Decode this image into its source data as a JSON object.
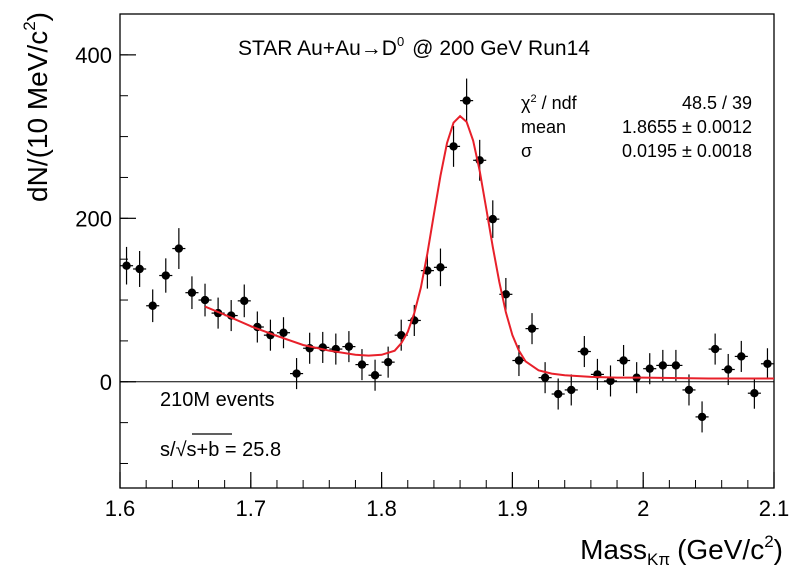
{
  "chart_data": {
    "type": "scatter",
    "title": {
      "text": "STAR Au+Au",
      "arrow": "→",
      "particle": "D",
      "particle_sup": "0",
      "rest": "@ 200 GeV Run14"
    },
    "xlabel": {
      "main": "Mass",
      "sub": "Kπ",
      "unit_pre": "(GeV/c",
      "unit_sup": "2",
      "unit_post": ")"
    },
    "ylabel": {
      "main": "dN/(10 MeV/c",
      "sup": "2",
      "post": ")"
    },
    "xlim": [
      1.6,
      2.1
    ],
    "ylim": [
      -130,
      450
    ],
    "x_ticks": [
      {
        "value": 1.6,
        "label": "1.6"
      },
      {
        "value": 1.7,
        "label": "1.7"
      },
      {
        "value": 1.8,
        "label": "1.8"
      },
      {
        "value": 1.9,
        "label": "1.9"
      },
      {
        "value": 2.0,
        "label": "2"
      },
      {
        "value": 2.1,
        "label": "2.1"
      }
    ],
    "y_ticks": [
      {
        "value": 0,
        "label": "0"
      },
      {
        "value": 200,
        "label": "200"
      },
      {
        "value": 400,
        "label": "400"
      }
    ],
    "x_minor_step": 0.02,
    "y_minor_step": 50,
    "zero_line": true,
    "grid": false,
    "stats": {
      "rows": [
        {
          "label_main": "χ",
          "label_sup": "2",
          "label_post": " / ndf",
          "value": "48.5 / 39"
        },
        {
          "label_main": "mean",
          "label_sup": "",
          "label_post": "",
          "value": "1.8655 ± 0.0012"
        },
        {
          "label_main": "σ",
          "label_sup": "",
          "label_post": "",
          "value": "0.0195 ± 0.0018"
        }
      ]
    },
    "annotations": {
      "events": "210M events",
      "significance_pre": "s/",
      "significance_sqrt": "s+b",
      "significance_post": " = 25.8"
    },
    "series": [
      {
        "kind": "data-points",
        "x": [
          1.605,
          1.615,
          1.625,
          1.635,
          1.645,
          1.655,
          1.665,
          1.675,
          1.685,
          1.695,
          1.705,
          1.715,
          1.725,
          1.735,
          1.745,
          1.755,
          1.765,
          1.775,
          1.785,
          1.795,
          1.805,
          1.815,
          1.825,
          1.835,
          1.845,
          1.855,
          1.865,
          1.875,
          1.885,
          1.895,
          1.905,
          1.915,
          1.925,
          1.935,
          1.945,
          1.955,
          1.965,
          1.975,
          1.985,
          1.995,
          2.005,
          2.015,
          2.025,
          2.035,
          2.045,
          2.055,
          2.065,
          2.075,
          2.085,
          2.095
        ],
        "y": [
          142,
          138,
          93,
          130,
          163,
          109,
          100,
          84,
          81,
          99,
          67,
          57,
          60,
          10,
          41,
          42,
          40,
          43,
          21,
          8,
          24,
          57,
          75,
          136,
          140,
          288,
          344,
          271,
          199,
          107,
          26,
          65,
          5,
          -15,
          -10,
          37,
          9,
          1,
          26,
          5,
          16,
          20,
          20,
          -10,
          -43,
          40,
          15,
          31,
          -14,
          22
        ],
        "err": [
          23,
          22,
          20,
          21,
          25,
          20,
          20,
          19,
          19,
          20,
          19,
          19,
          19,
          19,
          19,
          19,
          19,
          19,
          19,
          19,
          19,
          19,
          19,
          22,
          23,
          25,
          27,
          25,
          23,
          20,
          19,
          19,
          19,
          19,
          19,
          19,
          19,
          19,
          19,
          19,
          19,
          19,
          19,
          19,
          19,
          19,
          19,
          19,
          19,
          19
        ]
      },
      {
        "kind": "fit-curve",
        "color": "#e8202a",
        "x": [
          1.665,
          1.68,
          1.7,
          1.72,
          1.74,
          1.76,
          1.78,
          1.79,
          1.8,
          1.81,
          1.815,
          1.82,
          1.825,
          1.83,
          1.835,
          1.84,
          1.845,
          1.85,
          1.855,
          1.86,
          1.865,
          1.87,
          1.875,
          1.88,
          1.885,
          1.89,
          1.895,
          1.9,
          1.905,
          1.91,
          1.92,
          1.93,
          1.94,
          1.96,
          1.98,
          2.0,
          2.05,
          2.1
        ],
        "y": [
          92,
          82,
          68,
          56,
          45,
          38,
          33,
          32,
          33,
          38,
          47,
          61,
          84,
          115,
          157,
          205,
          252,
          292,
          317,
          325,
          318,
          295,
          258,
          212,
          165,
          122,
          85,
          57,
          38,
          25,
          14,
          10,
          8,
          6,
          5,
          5,
          4,
          4
        ]
      }
    ]
  }
}
